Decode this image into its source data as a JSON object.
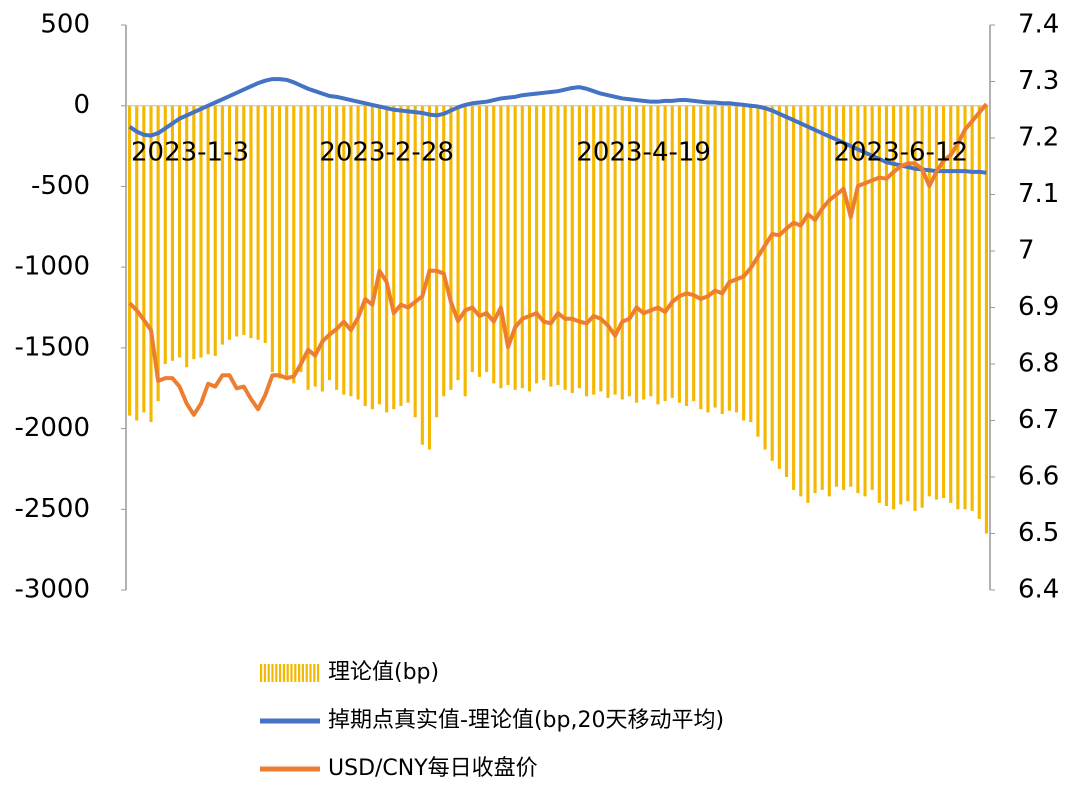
{
  "chart_data": {
    "type": "combo",
    "categories": [
      "2023-1-3",
      null,
      null,
      null,
      null,
      null,
      null,
      null,
      null,
      null,
      null,
      null,
      null,
      null,
      null,
      null,
      null,
      null,
      null,
      null,
      null,
      null,
      null,
      null,
      null,
      null,
      null,
      null,
      null,
      null,
      null,
      null,
      null,
      null,
      null,
      null,
      "2023-2-28",
      null,
      null,
      null,
      null,
      null,
      null,
      null,
      null,
      null,
      null,
      null,
      null,
      null,
      null,
      null,
      null,
      null,
      null,
      null,
      null,
      null,
      null,
      null,
      null,
      null,
      null,
      null,
      null,
      null,
      null,
      null,
      null,
      null,
      null,
      null,
      "2023-4-19",
      null,
      null,
      null,
      null,
      null,
      null,
      null,
      null,
      null,
      null,
      null,
      null,
      null,
      null,
      null,
      null,
      null,
      null,
      null,
      null,
      null,
      null,
      null,
      null,
      null,
      null,
      null,
      null,
      null,
      null,
      null,
      null,
      null,
      null,
      null,
      "2023-6-12",
      null,
      null,
      null,
      null,
      null,
      null,
      null,
      null,
      null,
      null,
      null,
      null
    ],
    "series": [
      {
        "name": "理论值(bp)",
        "type": "bar",
        "color": "#f5b800",
        "values": [
          -1920,
          -1950,
          -1900,
          -1960,
          -1830,
          -1600,
          -1580,
          -1560,
          -1620,
          -1570,
          -1560,
          -1540,
          -1550,
          -1480,
          -1450,
          -1430,
          -1420,
          -1440,
          -1450,
          -1470,
          -1650,
          -1690,
          -1700,
          -1720,
          -1650,
          -1760,
          -1740,
          -1770,
          -1700,
          -1760,
          -1790,
          -1800,
          -1820,
          -1860,
          -1880,
          -1850,
          -1900,
          -1880,
          -1860,
          -1840,
          -1930,
          -2100,
          -2130,
          -1930,
          -1800,
          -1760,
          -1700,
          -1800,
          -1650,
          -1680,
          -1650,
          -1720,
          -1750,
          -1730,
          -1760,
          -1750,
          -1770,
          -1720,
          -1700,
          -1740,
          -1730,
          -1760,
          -1780,
          -1750,
          -1800,
          -1790,
          -1770,
          -1810,
          -1790,
          -1820,
          -1800,
          -1840,
          -1820,
          -1800,
          -1850,
          -1830,
          -1810,
          -1840,
          -1860,
          -1830,
          -1880,
          -1900,
          -1870,
          -1910,
          -1890,
          -1900,
          -1950,
          -1960,
          -2050,
          -2130,
          -2200,
          -2250,
          -2300,
          -2380,
          -2420,
          -2460,
          -2400,
          -2380,
          -2420,
          -2360,
          -2380,
          -2360,
          -2400,
          -2420,
          -2380,
          -2460,
          -2480,
          -2500,
          -2470,
          -2450,
          -2510,
          -2490,
          -2420,
          -2440,
          -2430,
          -2460,
          -2500,
          -2500,
          -2510,
          -2560,
          -2650
        ]
      },
      {
        "name": "掉期点真实值-理论值(bp,20天移动平均)",
        "type": "line",
        "color": "#4472c4",
        "values": [
          -130,
          -160,
          -180,
          -185,
          -170,
          -140,
          -110,
          -80,
          -60,
          -40,
          -20,
          0,
          20,
          40,
          60,
          80,
          100,
          120,
          140,
          155,
          165,
          165,
          160,
          145,
          125,
          105,
          90,
          75,
          60,
          55,
          45,
          35,
          25,
          15,
          5,
          -5,
          -15,
          -25,
          -30,
          -35,
          -40,
          -45,
          -55,
          -60,
          -50,
          -30,
          -10,
          5,
          15,
          20,
          25,
          35,
          45,
          50,
          55,
          65,
          70,
          75,
          80,
          85,
          90,
          100,
          110,
          115,
          105,
          90,
          75,
          65,
          55,
          45,
          40,
          35,
          30,
          25,
          25,
          30,
          30,
          35,
          35,
          30,
          25,
          20,
          20,
          15,
          15,
          10,
          5,
          0,
          -5,
          -15,
          -30,
          -50,
          -70,
          -90,
          -110,
          -130,
          -150,
          -170,
          -190,
          -210,
          -230,
          -250,
          -270,
          -290,
          -310,
          -330,
          -350,
          -360,
          -370,
          -380,
          -390,
          -395,
          -400,
          -405,
          -405,
          -405,
          -405,
          -405,
          -410,
          -410,
          -415
        ]
      },
      {
        "name": "USD/CNY每日收盘价",
        "type": "line",
        "axis": "y2",
        "color": "#ed7d31",
        "values": [
          6.908,
          6.895,
          6.878,
          6.86,
          6.77,
          6.775,
          6.775,
          6.76,
          6.73,
          6.71,
          6.73,
          6.765,
          6.76,
          6.78,
          6.78,
          6.757,
          6.76,
          6.738,
          6.72,
          6.745,
          6.78,
          6.78,
          6.775,
          6.778,
          6.8,
          6.825,
          6.815,
          6.84,
          6.852,
          6.862,
          6.875,
          6.86,
          6.882,
          6.915,
          6.905,
          6.965,
          6.945,
          6.89,
          6.905,
          6.9,
          6.91,
          6.92,
          6.965,
          6.965,
          6.96,
          6.91,
          6.876,
          6.895,
          6.9,
          6.885,
          6.89,
          6.875,
          6.9,
          6.83,
          6.865,
          6.88,
          6.885,
          6.89,
          6.875,
          6.872,
          6.89,
          6.88,
          6.88,
          6.875,
          6.872,
          6.885,
          6.88,
          6.868,
          6.85,
          6.875,
          6.88,
          6.9,
          6.89,
          6.895,
          6.9,
          6.892,
          6.91,
          6.92,
          6.925,
          6.922,
          6.915,
          6.92,
          6.93,
          6.925,
          6.945,
          6.95,
          6.955,
          6.97,
          6.99,
          7.01,
          7.03,
          7.028,
          7.04,
          7.05,
          7.045,
          7.065,
          7.055,
          7.075,
          7.09,
          7.1,
          7.11,
          7.06,
          7.115,
          7.12,
          7.125,
          7.13,
          7.128,
          7.14,
          7.15,
          7.155,
          7.155,
          7.145,
          7.115,
          7.14,
          7.16,
          7.17,
          7.19,
          7.215,
          7.23,
          7.245,
          7.26
        ]
      }
    ],
    "ylim": [
      -3000,
      500
    ],
    "yticks": [
      500,
      0,
      -500,
      -1000,
      -1500,
      -2000,
      -2500,
      -3000
    ],
    "y2lim": [
      6.4,
      7.4
    ],
    "y2ticks": [
      7.4,
      7.3,
      7.2,
      7.1,
      7,
      6.9,
      6.8,
      6.7,
      6.6,
      6.5,
      6.4
    ],
    "grid": false,
    "legend": "bottom"
  }
}
